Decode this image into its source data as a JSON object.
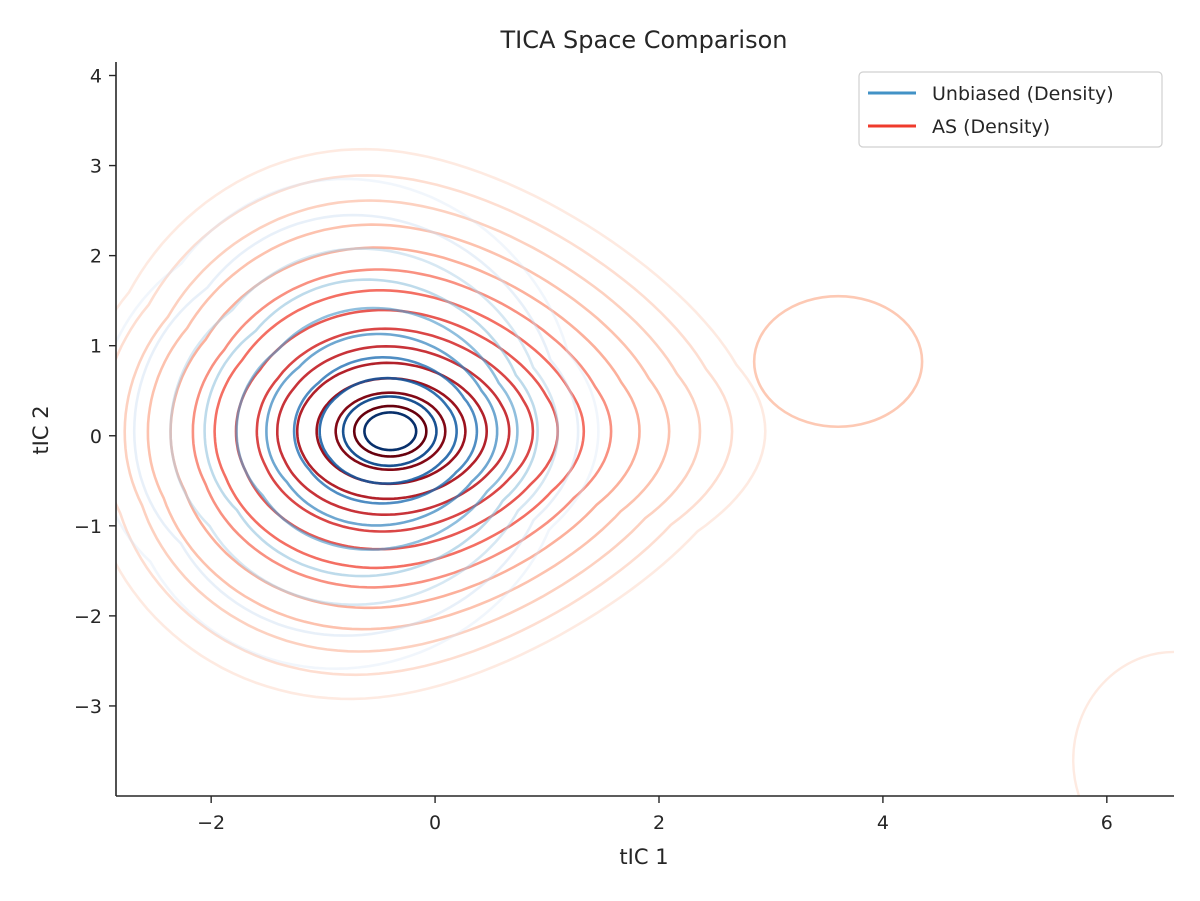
{
  "chart_data": {
    "type": "contour",
    "title": "TICA Space Comparison",
    "xlabel": "tIC 1",
    "ylabel": "tIC 2",
    "xlim": [
      -2.85,
      6.6
    ],
    "ylim": [
      -4.0,
      4.15
    ],
    "x_ticks": [
      -2,
      0,
      2,
      4,
      6
    ],
    "y_ticks": [
      -3,
      -2,
      -1,
      0,
      1,
      2,
      3,
      4
    ],
    "x_tick_labels": [
      "−2",
      "0",
      "2",
      "4",
      "6"
    ],
    "y_tick_labels": [
      "−3",
      "−2",
      "−1",
      "0",
      "1",
      "2",
      "3",
      "4"
    ],
    "grid": false,
    "legend": {
      "position": "top-right"
    },
    "series": [
      {
        "name": "Unbiased (Density)",
        "legend_color": "#4292c6",
        "colormap": "Blues",
        "center": [
          -0.4,
          0.05
        ],
        "levels": 10
      },
      {
        "name": "AS (Density)",
        "legend_color": "#ef3b2c",
        "colormap": "Reds",
        "center": [
          -0.4,
          0.05
        ],
        "levels": 14,
        "secondary_modes": [
          {
            "center": [
              3.25,
              0.85
            ],
            "extent_x": [
              2.85,
              4.35
            ],
            "extent_y": [
              0.1,
              1.55
            ]
          },
          {
            "center": [
              6.6,
              -3.6
            ],
            "extent_x": [
              5.7,
              6.6
            ],
            "extent_y": [
              -4.0,
              -2.8
            ]
          }
        ]
      }
    ]
  }
}
